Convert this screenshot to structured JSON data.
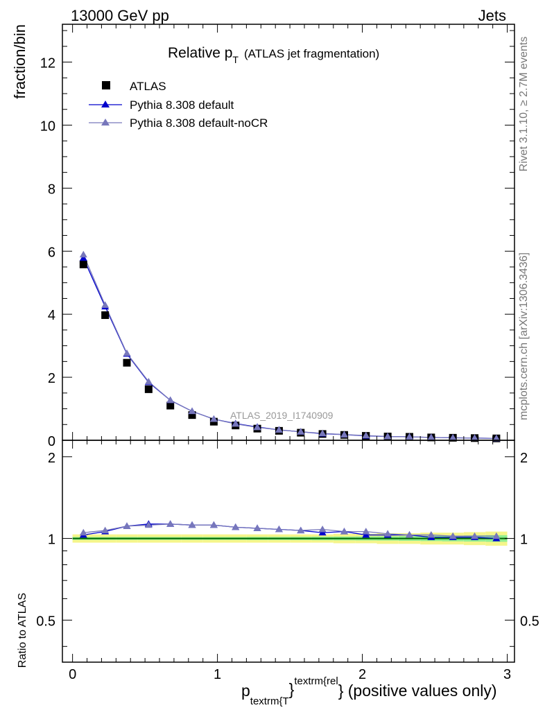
{
  "header": {
    "left": "13000 GeV pp",
    "right": "Jets"
  },
  "side": {
    "top": "Rivet 3.1.10, ≥ 2.7M events",
    "bottom": "mcplots.cern.ch [arXiv:1306.3436]"
  },
  "colors": {
    "atlas": "#000000",
    "default": "#0000cc",
    "noCR": "#7777bb",
    "band_outer": "#f5f58a",
    "band_inner": "#90ee90",
    "ref_line": "#006600"
  },
  "chart_data": {
    "type": "line",
    "title": "Relative p",
    "title_sub": "T",
    "title_suffix": "(ATLAS jet fragmentation)",
    "watermark": "ATLAS_2019_I1740909",
    "ylabel": "fraction/bin",
    "ratio_ylabel": "Ratio to ATLAS",
    "xlabel": {
      "p": "p",
      "sub": "textrm{T",
      "sup": "textrm{rel",
      "brace": "}",
      "rest": "} (positive values only)"
    },
    "xlim": [
      -0.07,
      3.05
    ],
    "ylim": [
      0,
      13.2
    ],
    "ratio_ylim": [
      0.35,
      2.3
    ],
    "xticks": [
      "0",
      "1",
      "2",
      "3"
    ],
    "yticks": [
      "0",
      "2",
      "4",
      "6",
      "8",
      "10",
      "12"
    ],
    "ratio_yticks": [
      "0.5",
      "1",
      "2"
    ],
    "x": [
      0.075,
      0.225,
      0.375,
      0.525,
      0.675,
      0.825,
      0.975,
      1.125,
      1.275,
      1.425,
      1.575,
      1.725,
      1.875,
      2.025,
      2.175,
      2.325,
      2.475,
      2.625,
      2.775,
      2.925
    ],
    "series": [
      {
        "name": "ATLAS",
        "values": [
          5.58,
          3.97,
          2.46,
          1.62,
          1.1,
          0.8,
          0.59,
          0.47,
          0.37,
          0.3,
          0.24,
          0.2,
          0.17,
          0.14,
          0.12,
          0.11,
          0.09,
          0.08,
          0.07,
          0.06
        ]
      },
      {
        "name": "Pythia 8.308 default",
        "values": [
          5.78,
          4.24,
          2.74,
          1.84,
          1.27,
          0.92,
          0.67,
          0.53,
          0.42,
          0.33,
          0.27,
          0.21,
          0.18,
          0.14,
          0.12,
          0.11,
          0.09,
          0.08,
          0.07,
          0.06
        ],
        "ratio": [
          1.03,
          1.06,
          1.11,
          1.13,
          1.13,
          1.12,
          1.12,
          1.1,
          1.09,
          1.08,
          1.07,
          1.05,
          1.06,
          1.03,
          1.03,
          1.03,
          1.01,
          1.01,
          1.01,
          1.0
        ]
      },
      {
        "name": "Pythia 8.308 default-noCR",
        "values": [
          5.89,
          4.29,
          2.76,
          1.86,
          1.27,
          0.92,
          0.67,
          0.52,
          0.41,
          0.33,
          0.27,
          0.22,
          0.18,
          0.15,
          0.12,
          0.11,
          0.09,
          0.08,
          0.07,
          0.06
        ],
        "ratio": [
          1.05,
          1.07,
          1.11,
          1.12,
          1.13,
          1.12,
          1.12,
          1.1,
          1.09,
          1.08,
          1.07,
          1.08,
          1.06,
          1.06,
          1.04,
          1.03,
          1.03,
          1.02,
          1.02,
          1.02
        ]
      }
    ],
    "ratio_band": {
      "outer": [
        0.035,
        0.035,
        0.035,
        0.035,
        0.035,
        0.035,
        0.035,
        0.035,
        0.035,
        0.035,
        0.035,
        0.035,
        0.04,
        0.04,
        0.045,
        0.045,
        0.05,
        0.05,
        0.055,
        0.06
      ],
      "inner": [
        0.012,
        0.012,
        0.012,
        0.012,
        0.012,
        0.012,
        0.012,
        0.012,
        0.013,
        0.013,
        0.014,
        0.015,
        0.016,
        0.017,
        0.018,
        0.02,
        0.022,
        0.024,
        0.026,
        0.028
      ]
    },
    "legend_position": "top-left",
    "grid": false
  }
}
